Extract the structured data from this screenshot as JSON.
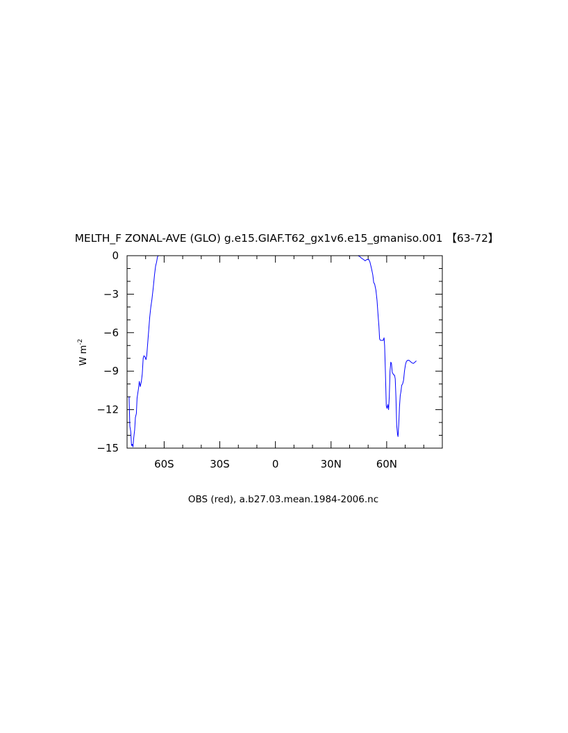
{
  "chart_data": {
    "type": "line",
    "title": "MELTH_F ZONAL-AVE (GLO) g.e15.GIAF.T62_gx1v6.e15_gmaniso.001 【63-72】",
    "xlabel": "OBS (red), a.b27.03.mean.1984-2006.nc",
    "ylabel": "W m",
    "ylabel_superscript": "-2",
    "xlim": [
      -80,
      90
    ],
    "ylim": [
      -15,
      0
    ],
    "x_ticks": [
      {
        "value": -60,
        "label": "60S"
      },
      {
        "value": -30,
        "label": "30S"
      },
      {
        "value": 0,
        "label": "0"
      },
      {
        "value": 30,
        "label": "30N"
      },
      {
        "value": 60,
        "label": "60N"
      }
    ],
    "y_ticks": [
      {
        "value": 0,
        "label": "0"
      },
      {
        "value": -3,
        "label": "−3"
      },
      {
        "value": -6,
        "label": "−6"
      },
      {
        "value": -9,
        "label": "−9"
      },
      {
        "value": -12,
        "label": "−12"
      },
      {
        "value": -15,
        "label": "−15"
      }
    ],
    "grid": false,
    "series": [
      {
        "color": "#0000ff",
        "points": [
          [
            -78.9,
            -11.0
          ],
          [
            -78.5,
            -13.3
          ],
          [
            -78.0,
            -13.7
          ],
          [
            -77.6,
            -14.8
          ],
          [
            -77.2,
            -14.7
          ],
          [
            -76.8,
            -14.9
          ],
          [
            -76.4,
            -14.2
          ],
          [
            -75.9,
            -13.6
          ],
          [
            -75.5,
            -12.6
          ],
          [
            -75.0,
            -12.3
          ],
          [
            -74.6,
            -11.1
          ],
          [
            -74.2,
            -10.7
          ],
          [
            -73.8,
            -10.3
          ],
          [
            -73.4,
            -9.8
          ],
          [
            -72.9,
            -10.2
          ],
          [
            -72.3,
            -9.8
          ],
          [
            -71.8,
            -9.2
          ],
          [
            -71.3,
            -8.0
          ],
          [
            -70.9,
            -7.8
          ],
          [
            -70.3,
            -7.9
          ],
          [
            -69.8,
            -8.1
          ],
          [
            -69.4,
            -7.8
          ],
          [
            -68.9,
            -6.9
          ],
          [
            -68.3,
            -5.8
          ],
          [
            -67.8,
            -4.8
          ],
          [
            -67.2,
            -4.0
          ],
          [
            -66.6,
            -3.4
          ],
          [
            -65.9,
            -2.5
          ],
          [
            -65.2,
            -1.5
          ],
          [
            -64.6,
            -0.8
          ],
          [
            -64.1,
            -0.5
          ],
          [
            -63.6,
            -0.1
          ],
          [
            -63.2,
            0.0
          ],
          [
            44.5,
            0.0
          ],
          [
            45.3,
            -0.05
          ],
          [
            46.5,
            -0.2
          ],
          [
            47.5,
            -0.3
          ],
          [
            48.4,
            -0.4
          ],
          [
            49.3,
            -0.3
          ],
          [
            50.3,
            -0.3
          ],
          [
            51.0,
            -0.5
          ],
          [
            51.8,
            -1.0
          ],
          [
            52.5,
            -1.5
          ],
          [
            53.0,
            -2.1
          ],
          [
            53.5,
            -2.2
          ],
          [
            54.2,
            -2.7
          ],
          [
            54.8,
            -3.5
          ],
          [
            55.3,
            -4.5
          ],
          [
            55.8,
            -5.5
          ],
          [
            56.2,
            -6.5
          ],
          [
            56.7,
            -6.6
          ],
          [
            57.4,
            -6.6
          ],
          [
            58.1,
            -6.6
          ],
          [
            58.6,
            -6.4
          ],
          [
            58.9,
            -7.0
          ],
          [
            59.3,
            -9.0
          ],
          [
            59.8,
            -11.7
          ],
          [
            60.2,
            -11.9
          ],
          [
            60.6,
            -11.6
          ],
          [
            61.0,
            -12.0
          ],
          [
            61.4,
            -11.0
          ],
          [
            61.8,
            -9.0
          ],
          [
            62.2,
            -8.3
          ],
          [
            62.6,
            -8.4
          ],
          [
            63.0,
            -9.1
          ],
          [
            63.4,
            -9.2
          ],
          [
            63.8,
            -9.3
          ],
          [
            64.2,
            -9.3
          ],
          [
            64.6,
            -9.6
          ],
          [
            65.0,
            -11.0
          ],
          [
            65.4,
            -13.2
          ],
          [
            65.8,
            -13.9
          ],
          [
            66.1,
            -14.1
          ],
          [
            66.5,
            -13.2
          ],
          [
            66.9,
            -11.8
          ],
          [
            67.3,
            -10.9
          ],
          [
            67.7,
            -10.6
          ],
          [
            68.1,
            -10.1
          ],
          [
            68.6,
            -10.0
          ],
          [
            69.1,
            -9.7
          ],
          [
            69.6,
            -9.0
          ],
          [
            70.1,
            -8.5
          ],
          [
            70.6,
            -8.25
          ],
          [
            71.3,
            -8.15
          ],
          [
            72.0,
            -8.15
          ],
          [
            72.8,
            -8.25
          ],
          [
            73.6,
            -8.35
          ],
          [
            74.4,
            -8.4
          ],
          [
            75.2,
            -8.3
          ],
          [
            76.0,
            -8.2
          ]
        ]
      }
    ]
  }
}
